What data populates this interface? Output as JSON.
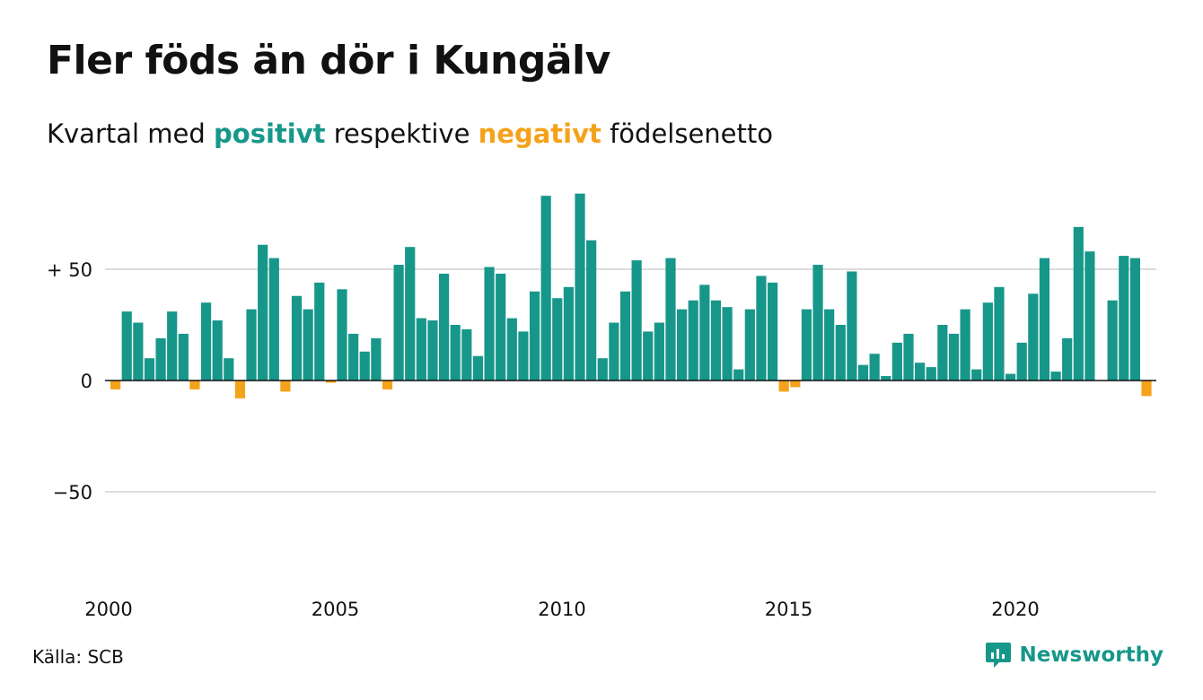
{
  "title": "Fler föds än dör i Kungälv",
  "subtitle": {
    "before": "Kvartal med",
    "positive": "positivt",
    "middle": "respektive",
    "negative": "negativt",
    "after": "födelsenetto"
  },
  "source": "Källa: SCB",
  "brand": {
    "name": "Newsworthy",
    "icon": "newsworthy-logo-icon"
  },
  "colors": {
    "positive": "#17978a",
    "negative": "#f5a21b",
    "grid": "#dddddd",
    "axis": "#111111"
  },
  "chart_data": {
    "type": "bar",
    "title": "Fler föds än dör i Kungälv",
    "xlabel": "",
    "ylabel": "",
    "ylim": [
      -90,
      85
    ],
    "yticks": [
      50,
      0,
      -50
    ],
    "ytick_labels": [
      "+ 50",
      "0",
      "−50"
    ],
    "xticks": [
      2000,
      2005,
      2010,
      2015,
      2020
    ],
    "xlim": [
      2000,
      2023
    ],
    "grid": true,
    "start": "2000 Q1",
    "frequency": "quarterly",
    "values": [
      -4,
      31,
      26,
      10,
      19,
      31,
      21,
      -4,
      35,
      27,
      10,
      -8,
      32,
      61,
      55,
      -5,
      38,
      32,
      44,
      -1,
      41,
      21,
      13,
      19,
      -4,
      52,
      60,
      28,
      27,
      48,
      25,
      23,
      11,
      51,
      48,
      28,
      22,
      40,
      83,
      37,
      42,
      84,
      63,
      10,
      26,
      40,
      54,
      22,
      26,
      55,
      32,
      36,
      43,
      36,
      33,
      5,
      32,
      47,
      44,
      -5,
      -3,
      32,
      52,
      32,
      25,
      49,
      7,
      12,
      2,
      17,
      21,
      8,
      6,
      25,
      21,
      32,
      5,
      35,
      42,
      3,
      17,
      39,
      55,
      4,
      19,
      69,
      58,
      0,
      36,
      56,
      55,
      -7
    ]
  }
}
